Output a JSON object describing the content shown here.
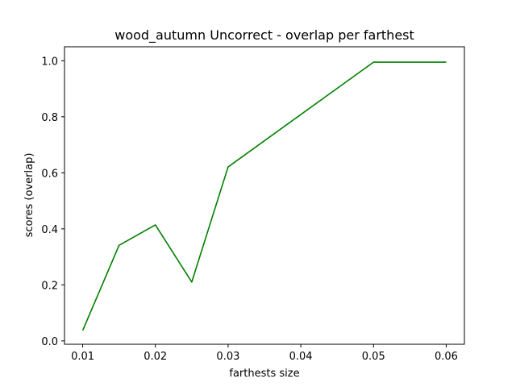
{
  "chart_data": {
    "type": "line",
    "title": "wood_autumn Uncorrect - overlap per farthest",
    "xlabel": "farthests size",
    "ylabel": "scores (overlap)",
    "xlim": [
      0.0075,
      0.0625
    ],
    "ylim": [
      -0.012,
      1.05
    ],
    "xticks": [
      0.01,
      0.02,
      0.03,
      0.04,
      0.05,
      0.06
    ],
    "xtick_labels": [
      "0.01",
      "0.02",
      "0.03",
      "0.04",
      "0.05",
      "0.06"
    ],
    "yticks": [
      0.0,
      0.2,
      0.4,
      0.6,
      0.8,
      1.0
    ],
    "ytick_labels": [
      "0.0",
      "0.2",
      "0.4",
      "0.6",
      "0.8",
      "1.0"
    ],
    "grid": false,
    "series": [
      {
        "color": "#008000",
        "x": [
          0.01,
          0.015,
          0.02,
          0.025,
          0.03,
          0.05,
          0.06
        ],
        "y": [
          0.037,
          0.341,
          0.414,
          0.21,
          0.621,
          0.995,
          0.995
        ]
      }
    ]
  }
}
